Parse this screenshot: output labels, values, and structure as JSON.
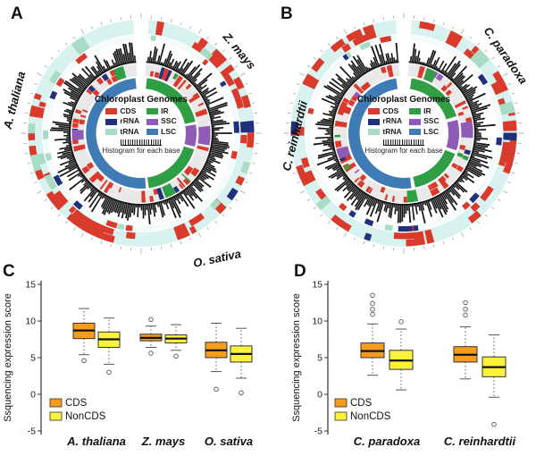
{
  "panels": {
    "A": {
      "label": "A"
    },
    "B": {
      "label": "B"
    },
    "C": {
      "label": "C"
    },
    "D": {
      "label": "D"
    }
  },
  "species_labels": {
    "a_thaliana": "A. thaliana",
    "z_mays": "Z. mays",
    "o_sativa": "O. sativa",
    "c_paradoxa": "C. paradoxa",
    "c_reinhardtii": "C. reinhardtii"
  },
  "circular": {
    "legend": {
      "title": "Chloroplast Genomes",
      "items": [
        {
          "label": "CDS",
          "color": "#d93a2b"
        },
        {
          "label": "rRNA",
          "color": "#20307d"
        },
        {
          "label": "tRNA",
          "color": "#a8dcc4"
        },
        {
          "label": "IR",
          "color": "#2f9e44"
        },
        {
          "label": "SSC",
          "color": "#8f5bb8"
        },
        {
          "label": "LSC",
          "color": "#3f7cb6"
        }
      ],
      "footer": "Histogram for each base"
    },
    "ring_colors": {
      "outer_bg": "#d8f3ef",
      "sub_bg": "#f4fbfa",
      "gray_bg": "#e9e9e9",
      "histogram": "#161616",
      "tick": "#9a9a9a"
    },
    "plots": [
      {
        "id": "A",
        "seed": 7,
        "gap": 4,
        "outer_blocks": 52,
        "sub_blocks": 15,
        "gray_blocks": 70,
        "genome_arcs": [
          {
            "a1": 6,
            "a2": 78,
            "type": "IR"
          },
          {
            "a1": 81,
            "a2": 104,
            "type": "SSC"
          },
          {
            "a1": 107,
            "a2": 172,
            "type": "IR"
          },
          {
            "a1": 175,
            "a2": 354,
            "type": "LSC"
          }
        ],
        "gray_features": [
          {
            "a1": 84,
            "a2": 100,
            "type": "SSC"
          },
          {
            "a1": 264,
            "a2": 273,
            "type": "SSC"
          },
          {
            "a1": 336,
            "a2": 345,
            "type": "IR"
          },
          {
            "a1": 150,
            "a2": 159,
            "type": "IR"
          }
        ]
      },
      {
        "id": "B",
        "seed": 41,
        "gap": 4,
        "outer_blocks": 55,
        "sub_blocks": 17,
        "gray_blocks": 72,
        "genome_arcs": [
          {
            "a1": 8,
            "a2": 72,
            "type": "IR"
          },
          {
            "a1": 76,
            "a2": 108,
            "type": "SSC"
          },
          {
            "a1": 112,
            "a2": 168,
            "type": "IR"
          },
          {
            "a1": 172,
            "a2": 352,
            "type": "LSC"
          }
        ],
        "gray_features": [
          {
            "a1": 80,
            "a2": 94,
            "type": "SSC"
          },
          {
            "a1": 248,
            "a2": 257,
            "type": "SSC"
          },
          {
            "a1": 20,
            "a2": 29,
            "type": "IR"
          },
          {
            "a1": 168,
            "a2": 177,
            "type": "IR"
          }
        ]
      }
    ]
  },
  "chart_data": [
    {
      "type": "boxplot",
      "panel": "C",
      "ylabel": "Ssquencing expression score",
      "ylim": [
        -5,
        15
      ],
      "yticks": [
        -5,
        0,
        5,
        10,
        15
      ],
      "categories": [
        "A. thaliana",
        "Z. mays",
        "O. sativa"
      ],
      "legend_labels": [
        "CDS",
        "NonCDS"
      ],
      "series": [
        {
          "name": "CDS",
          "color": "#f59c1c",
          "boxes": [
            {
              "low": 5.4,
              "q1": 7.6,
              "median": 8.7,
              "q3": 9.7,
              "high": 11.7,
              "outliers": [
                4.6
              ]
            },
            {
              "low": 6.4,
              "q1": 7.3,
              "median": 7.7,
              "q3": 8.2,
              "high": 9.3,
              "outliers": [
                10.2,
                5.6
              ]
            },
            {
              "low": 3.1,
              "q1": 5.0,
              "median": 6.0,
              "q3": 7.1,
              "high": 9.7,
              "outliers": [
                0.7
              ]
            }
          ]
        },
        {
          "name": "NonCDS",
          "color": "#fdf23b",
          "boxes": [
            {
              "low": 4.1,
              "q1": 6.4,
              "median": 7.5,
              "q3": 8.5,
              "high": 10.4,
              "outliers": [
                3.0
              ]
            },
            {
              "low": 6.0,
              "q1": 7.0,
              "median": 7.6,
              "q3": 8.1,
              "high": 9.5,
              "outliers": [
                5.2
              ]
            },
            {
              "low": 2.2,
              "q1": 4.4,
              "median": 5.5,
              "q3": 6.6,
              "high": 9.0,
              "outliers": [
                0.2
              ]
            }
          ]
        }
      ]
    },
    {
      "type": "boxplot",
      "panel": "D",
      "ylabel": "Ssquencing expression score",
      "ylim": [
        -5,
        15
      ],
      "yticks": [
        -5,
        0,
        5,
        10,
        15
      ],
      "categories": [
        "C. paradoxa",
        "C. reinhardtii"
      ],
      "legend_labels": [
        "CDS",
        "NonCDS"
      ],
      "series": [
        {
          "name": "CDS",
          "color": "#f59c1c",
          "boxes": [
            {
              "low": 2.6,
              "q1": 5.0,
              "median": 5.9,
              "q3": 7.0,
              "high": 9.6,
              "outliers": [
                10.9,
                11.6,
                12.4,
                13.5
              ]
            },
            {
              "low": 2.1,
              "q1": 4.4,
              "median": 5.4,
              "q3": 6.5,
              "high": 9.2,
              "outliers": [
                10.8,
                11.6,
                12.5
              ]
            }
          ]
        },
        {
          "name": "NonCDS",
          "color": "#fdf23b",
          "boxes": [
            {
              "low": 0.6,
              "q1": 3.4,
              "median": 4.6,
              "q3": 6.0,
              "high": 8.9,
              "outliers": [
                9.9
              ]
            },
            {
              "low": -0.4,
              "q1": 2.4,
              "median": 3.7,
              "q3": 5.1,
              "high": 8.1,
              "outliers": [
                -4.1
              ]
            }
          ]
        }
      ]
    }
  ]
}
